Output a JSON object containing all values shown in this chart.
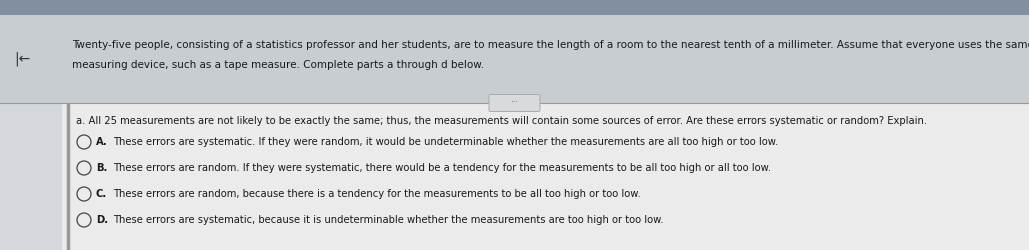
{
  "bg_top": "#b0b8c0",
  "bg_main": "#c8cdd2",
  "content_bg": "#e8eaec",
  "header_bg": "#c8cdd2",
  "white_panel_bg": "#f0f0f0",
  "header_text_line1": "Twenty-five people, consisting of a statistics professor and her students, are to measure the length of a room to the nearest tenth of a millimeter. Assume that everyone uses the same well-calibrated",
  "header_text_line2": "measuring device, such as a tape measure. Complete parts a through d below.",
  "question": "a. All 25 measurements are not likely to be exactly the same; thus, the measurements will contain some sources of error. Are these errors systematic or random? Explain.",
  "options": [
    {
      "label": "A.",
      "text": "These errors are systematic. If they were random, it would be undeterminable whether the measurements are all too high or too low."
    },
    {
      "label": "B.",
      "text": "These errors are random. If they were systematic, there would be a tendency for the measurements to be all too high or all too low."
    },
    {
      "label": "C.",
      "text": "These errors are random, because there is a tendency for the measurements to be all too high or too low."
    },
    {
      "label": "D.",
      "text": "These errors are systematic, because it is undeterminable whether the measurements are too high or too low."
    }
  ],
  "header_fontsize": 7.5,
  "question_fontsize": 7.2,
  "option_fontsize": 7.2,
  "text_color": "#1a1a1a",
  "divider_color": "#999999",
  "left_bar_color": "#999999",
  "circle_edge_color": "#444444",
  "btn_color": "#d8dadc",
  "btn_border": "#aaaaaa",
  "arrow_color": "#333333"
}
